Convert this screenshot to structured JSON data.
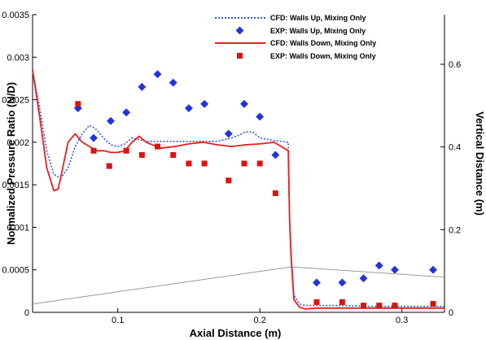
{
  "chart_data": {
    "type": "line",
    "xlabel": "Axial Distance (m)",
    "ylabel": "Normalized Pressure Ratio (N/D)",
    "y2label": "Vertical Distance (m)",
    "xlim": [
      0.04,
      0.33
    ],
    "ylim": [
      0,
      0.0035
    ],
    "y2lim": [
      0,
      0.72
    ],
    "x_ticks": [
      0.1,
      0.2,
      0.3
    ],
    "x_tick_labels": [
      "0.1",
      "0.2",
      "0.3"
    ],
    "y_ticks": [
      0,
      0.0005,
      0.001,
      0.0015,
      0.002,
      0.0025,
      0.003,
      0.0035
    ],
    "y_tick_labels": [
      "0",
      "0.0005",
      "0.001",
      "0.0015",
      "0.002",
      "0.0025",
      "0.003",
      "0.0035"
    ],
    "y2_ticks": [
      0,
      0.2,
      0.4,
      0.6
    ],
    "y2_tick_labels": [
      "0",
      "0.2",
      "0.4",
      "0.6"
    ],
    "grid": false,
    "legend_position": "top-right",
    "series": [
      {
        "name": "CFD: Walls Up, Mixing Only",
        "kind": "line",
        "style": "dotted",
        "color": "#3355ee",
        "axis": "left",
        "x": [
          0.04,
          0.045,
          0.05,
          0.055,
          0.06,
          0.065,
          0.07,
          0.075,
          0.08,
          0.085,
          0.09,
          0.095,
          0.1,
          0.105,
          0.11,
          0.115,
          0.12,
          0.13,
          0.14,
          0.15,
          0.16,
          0.17,
          0.18,
          0.185,
          0.19,
          0.195,
          0.2,
          0.21,
          0.22,
          0.221,
          0.222,
          0.224,
          0.228,
          0.232,
          0.24,
          0.25,
          0.26,
          0.28,
          0.3,
          0.33
        ],
        "y": [
          0.00285,
          0.0024,
          0.0019,
          0.00162,
          0.00158,
          0.0017,
          0.00195,
          0.0021,
          0.0022,
          0.00215,
          0.00205,
          0.00197,
          0.00195,
          0.00198,
          0.00205,
          0.00203,
          0.00201,
          0.00201,
          0.00201,
          0.00201,
          0.00201,
          0.00201,
          0.00205,
          0.00208,
          0.00212,
          0.00212,
          0.00205,
          0.00202,
          0.002,
          0.0011,
          0.0007,
          0.0002,
          0.0001,
          8e-05,
          8e-05,
          8e-05,
          8e-05,
          7e-05,
          7e-05,
          7e-05
        ]
      },
      {
        "name": "EXP: Walls Up, Mixing Only",
        "kind": "marker",
        "marker": "diamond",
        "color": "#2233dd",
        "axis": "left",
        "x": [
          0.072,
          0.083,
          0.095,
          0.106,
          0.117,
          0.128,
          0.139,
          0.15,
          0.161,
          0.178,
          0.189,
          0.2,
          0.211,
          0.24,
          0.258,
          0.273,
          0.284,
          0.295,
          0.322
        ],
        "y": [
          0.0024,
          0.00205,
          0.00225,
          0.00235,
          0.00265,
          0.0028,
          0.0027,
          0.0024,
          0.00245,
          0.0021,
          0.00245,
          0.0023,
          0.00185,
          0.00035,
          0.00035,
          0.0004,
          0.00055,
          0.0005,
          0.0005
        ]
      },
      {
        "name": "CFD: Walls Down, Mixing Only",
        "kind": "line",
        "style": "solid",
        "color": "#ee1c1c",
        "axis": "left",
        "x": [
          0.04,
          0.045,
          0.05,
          0.055,
          0.058,
          0.06,
          0.065,
          0.07,
          0.075,
          0.08,
          0.085,
          0.09,
          0.095,
          0.1,
          0.105,
          0.11,
          0.115,
          0.12,
          0.13,
          0.14,
          0.15,
          0.16,
          0.17,
          0.18,
          0.19,
          0.2,
          0.21,
          0.22,
          0.221,
          0.222,
          0.224,
          0.228,
          0.232,
          0.24,
          0.25,
          0.26,
          0.28,
          0.3,
          0.33
        ],
        "y": [
          0.00285,
          0.0023,
          0.0017,
          0.00143,
          0.00145,
          0.0016,
          0.002,
          0.0021,
          0.002,
          0.00195,
          0.0019,
          0.0019,
          0.00188,
          0.00188,
          0.0019,
          0.002,
          0.00207,
          0.002,
          0.00193,
          0.00195,
          0.00198,
          0.002,
          0.00197,
          0.00195,
          0.00197,
          0.00198,
          0.002,
          0.0019,
          0.00105,
          0.00065,
          0.00015,
          6e-05,
          4e-05,
          5e-05,
          5e-05,
          5e-05,
          5e-05,
          5e-05,
          5e-05
        ]
      },
      {
        "name": "EXP: Walls Down, Mixing Only",
        "kind": "marker",
        "marker": "square",
        "color": "#dd1111",
        "axis": "left",
        "x": [
          0.072,
          0.083,
          0.094,
          0.106,
          0.117,
          0.128,
          0.139,
          0.15,
          0.161,
          0.178,
          0.189,
          0.2,
          0.211,
          0.24,
          0.258,
          0.273,
          0.284,
          0.295,
          0.322
        ],
        "y": [
          0.00245,
          0.0019,
          0.00172,
          0.0019,
          0.00185,
          0.00195,
          0.00185,
          0.00175,
          0.00175,
          0.00155,
          0.00175,
          0.00175,
          0.0014,
          0.00012,
          0.00012,
          8e-05,
          8e-05,
          8e-05,
          0.0001
        ]
      },
      {
        "kind": "geometry",
        "style": "solid",
        "color": "#999999",
        "axis": "right",
        "x": [
          0.04,
          0.222,
          0.33
        ],
        "y": [
          0.02,
          0.11,
          0.085
        ]
      }
    ]
  }
}
